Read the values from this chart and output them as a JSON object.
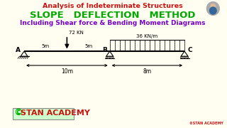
{
  "bg_color": "#fffef0",
  "title1": "Analysis of Indeterminate Structures",
  "title1_color": "#cc1111",
  "title2": "SLOPE   DEFLECTION   METHOD",
  "title2_color": "#00aa00",
  "title3": "Including Shear force & Bending Moment Diagrams",
  "title3_color": "#7700cc",
  "beam_color": "#000000",
  "label_A": "A",
  "label_B": "B",
  "label_C": "C",
  "span_AB": "10m",
  "span_BC": "8m",
  "seg_A": "5m",
  "seg_B": "5m",
  "point_load": "72 KN",
  "udl_load": "36 KN/m",
  "wm_c_color": "#00aa00",
  "wm_t_color": "#cc1111",
  "wm_box_color": "#ccffcc",
  "small_watermark": "©STAN ACADEMY",
  "small_wm_color": "#cc1111"
}
